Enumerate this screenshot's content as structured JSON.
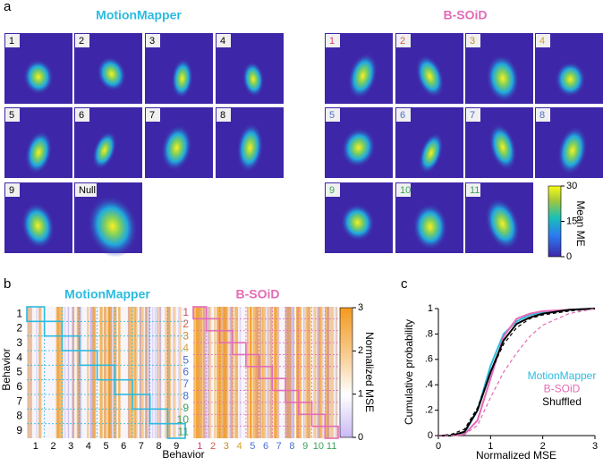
{
  "panel_labels": [
    "a",
    "b",
    "c"
  ],
  "a": {
    "left_title": "MotionMapper",
    "right_title": "B-SOiD",
    "mm_labels": [
      "1",
      "2",
      "3",
      "4",
      "5",
      "6",
      "7",
      "8",
      "9",
      "Null"
    ],
    "bsoid_labels": [
      "1",
      "2",
      "3",
      "4",
      "5",
      "6",
      "7",
      "8",
      "9",
      "10",
      "11"
    ],
    "bsoid_label_colors": [
      "#d2436a",
      "#d65a4a",
      "#c98a26",
      "#d4a12e",
      "#4a6fd0",
      "#4a6fd0",
      "#4a6fd0",
      "#4a6fd0",
      "#3aa55a",
      "#3aa55a",
      "#3aa55a"
    ],
    "colorbar": {
      "label": "Mean ME",
      "lim": [
        0,
        30
      ],
      "ticks": [
        0,
        15,
        30
      ]
    }
  },
  "b": {
    "left_title": "MotionMapper",
    "right_title": "B-SOiD",
    "y_label": "Behavior",
    "x_label": "Behavior",
    "mm_labels": [
      "1",
      "2",
      "3",
      "4",
      "5",
      "6",
      "7",
      "8",
      "9"
    ],
    "bsoid_labels": [
      "1",
      "2",
      "3",
      "4",
      "5",
      "6",
      "7",
      "8",
      "9",
      "10",
      "11"
    ],
    "bsoid_label_colors": [
      "#d2436a",
      "#d65a4a",
      "#c98a26",
      "#d4a12e",
      "#4a6fd0",
      "#4a6fd0",
      "#4a6fd0",
      "#4a6fd0",
      "#3aa55a",
      "#3aa55a",
      "#3aa55a"
    ],
    "colorbar": {
      "label": "Normalized MSE",
      "lim": [
        0,
        3
      ],
      "ticks": [
        0,
        1,
        2,
        3
      ]
    }
  },
  "chart_data": {
    "type": "line",
    "x_label": "Normalized MSE",
    "y_label": "Cumulative probability",
    "x": [
      0,
      0.25,
      0.5,
      0.75,
      1,
      1.25,
      1.5,
      1.75,
      2,
      2.5,
      3
    ],
    "series": [
      {
        "name": "MotionMapper",
        "color": "#2bbbe0",
        "values": [
          0,
          0,
          0.02,
          0.2,
          0.55,
          0.8,
          0.9,
          0.95,
          0.97,
          0.99,
          1
        ]
      },
      {
        "name": "B-SOiD",
        "color": "#e46bb5",
        "values": [
          0,
          0,
          0.01,
          0.12,
          0.45,
          0.78,
          0.92,
          0.96,
          0.98,
          0.99,
          1
        ]
      },
      {
        "name": "Shuffled",
        "color": "#000000",
        "values": [
          0,
          0,
          0.03,
          0.2,
          0.5,
          0.75,
          0.88,
          0.93,
          0.96,
          0.99,
          1
        ]
      },
      {
        "color": "#000000",
        "dashed": true,
        "values": [
          0,
          0.01,
          0.05,
          0.22,
          0.5,
          0.72,
          0.85,
          0.92,
          0.95,
          0.98,
          1
        ]
      },
      {
        "color": "#e46bb5",
        "dashed": true,
        "values": [
          0,
          0,
          0.01,
          0.08,
          0.3,
          0.5,
          0.65,
          0.78,
          0.87,
          0.96,
          1
        ]
      }
    ],
    "xlim": [
      0,
      3
    ],
    "xticks": [
      0,
      1,
      2,
      3
    ],
    "ylim": [
      0,
      1
    ],
    "yticks": [
      0,
      {
        "value": 0.2,
        "label": ".2"
      },
      {
        "value": 0.4,
        "label": ".4"
      },
      {
        "value": 0.6,
        "label": ".6"
      },
      {
        "value": 0.8,
        "label": ".8"
      },
      1
    ],
    "grid": false,
    "legend": "lower right"
  }
}
